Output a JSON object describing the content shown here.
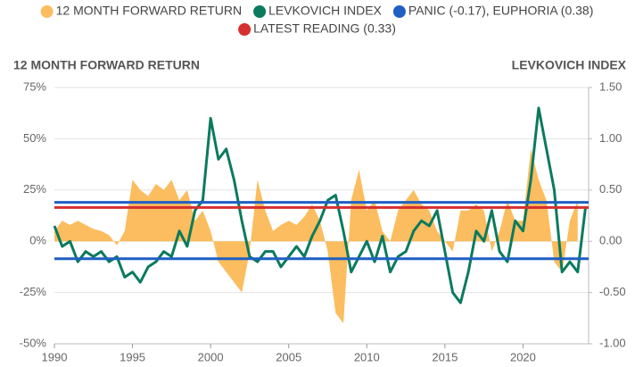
{
  "chart_data": {
    "type": "line",
    "y_title": "12 MONTH FORWARD RETURN",
    "y2_title": "LEVKOVICH INDEX",
    "x": [
      1990,
      1990.5,
      1991,
      1991.5,
      1992,
      1992.5,
      1993,
      1993.5,
      1994,
      1994.5,
      1995,
      1995.5,
      1996,
      1996.5,
      1997,
      1997.5,
      1998,
      1998.5,
      1999,
      1999.5,
      2000,
      2000.5,
      2001,
      2001.5,
      2002,
      2002.5,
      2003,
      2003.5,
      2004,
      2004.5,
      2005,
      2005.5,
      2006,
      2006.5,
      2007,
      2007.5,
      2008,
      2008.5,
      2009,
      2009.5,
      2010,
      2010.5,
      2011,
      2011.5,
      2012,
      2012.5,
      2013,
      2013.5,
      2014,
      2014.5,
      2015,
      2015.5,
      2016,
      2016.5,
      2017,
      2017.5,
      2018,
      2018.5,
      2019,
      2019.5,
      2020,
      2020.5,
      2021,
      2021.5,
      2022,
      2022.5,
      2023,
      2023.5,
      2024
    ],
    "series": [
      {
        "name": "12 MONTH FORWARD RETURN",
        "color": "#fbbd5f",
        "style": "area",
        "axis": "y",
        "values": [
          5,
          10,
          8,
          10,
          8,
          6,
          5,
          3,
          -2,
          5,
          30,
          25,
          22,
          28,
          25,
          30,
          20,
          25,
          10,
          15,
          5,
          -10,
          -15,
          -20,
          -25,
          -5,
          30,
          15,
          5,
          8,
          10,
          8,
          12,
          18,
          10,
          -5,
          -35,
          -40,
          20,
          35,
          15,
          20,
          5,
          0,
          15,
          20,
          25,
          18,
          15,
          5,
          0,
          -5,
          15,
          15,
          18,
          15,
          -5,
          5,
          20,
          10,
          10,
          45,
          30,
          20,
          -10,
          -15,
          10,
          20,
          null
        ]
      },
      {
        "name": "LEVKOVICH INDEX",
        "color": "#0b7a5e",
        "style": "line",
        "axis": "y2",
        "values": [
          0.15,
          -0.05,
          0.0,
          -0.2,
          -0.1,
          -0.15,
          -0.1,
          -0.2,
          -0.15,
          -0.35,
          -0.3,
          -0.4,
          -0.25,
          -0.2,
          -0.1,
          -0.15,
          0.1,
          -0.05,
          0.3,
          0.4,
          1.2,
          0.8,
          0.9,
          0.6,
          0.2,
          -0.15,
          -0.2,
          -0.1,
          -0.1,
          -0.25,
          -0.15,
          -0.05,
          -0.15,
          0.05,
          0.2,
          0.4,
          0.45,
          0.1,
          -0.3,
          -0.15,
          0.0,
          -0.2,
          0.05,
          -0.3,
          -0.15,
          -0.1,
          0.1,
          0.2,
          0.15,
          0.3,
          -0.1,
          -0.5,
          -0.6,
          -0.3,
          0.1,
          0.0,
          0.3,
          -0.1,
          -0.2,
          0.2,
          0.1,
          0.6,
          1.3,
          0.9,
          0.5,
          -0.3,
          -0.2,
          -0.3,
          0.33
        ]
      }
    ],
    "reference_lines": [
      {
        "name": "PANIC (-0.17), EUPHORIA (0.38)",
        "color": "#1f5fc4",
        "axis": "y2",
        "values": [
          -0.17,
          0.38
        ]
      },
      {
        "name": "LATEST READING (0.33)",
        "color": "#d62f2f",
        "axis": "y2",
        "values": [
          0.33
        ]
      }
    ],
    "xlim": [
      1990,
      2024.2
    ],
    "xticks": [
      1990,
      1995,
      2000,
      2005,
      2010,
      2015,
      2020
    ],
    "ylim": [
      -50,
      75
    ],
    "yticks": [
      {
        "value": -50,
        "label": "-50%"
      },
      {
        "value": -25,
        "label": "-25%"
      },
      {
        "value": 0,
        "label": "0%"
      },
      {
        "value": 25,
        "label": "25%"
      },
      {
        "value": 50,
        "label": "50%"
      },
      {
        "value": 75,
        "label": "75%"
      }
    ],
    "y2lim": [
      -1,
      1.5
    ],
    "y2ticks": [
      {
        "value": -1,
        "label": "-1.00"
      },
      {
        "value": -0.5,
        "label": "-0.50"
      },
      {
        "value": 0,
        "label": "0.00"
      },
      {
        "value": 0.5,
        "label": "0.50"
      },
      {
        "value": 1,
        "label": "1.00"
      },
      {
        "value": 1.5,
        "label": "1.50"
      }
    ],
    "grid": true
  }
}
